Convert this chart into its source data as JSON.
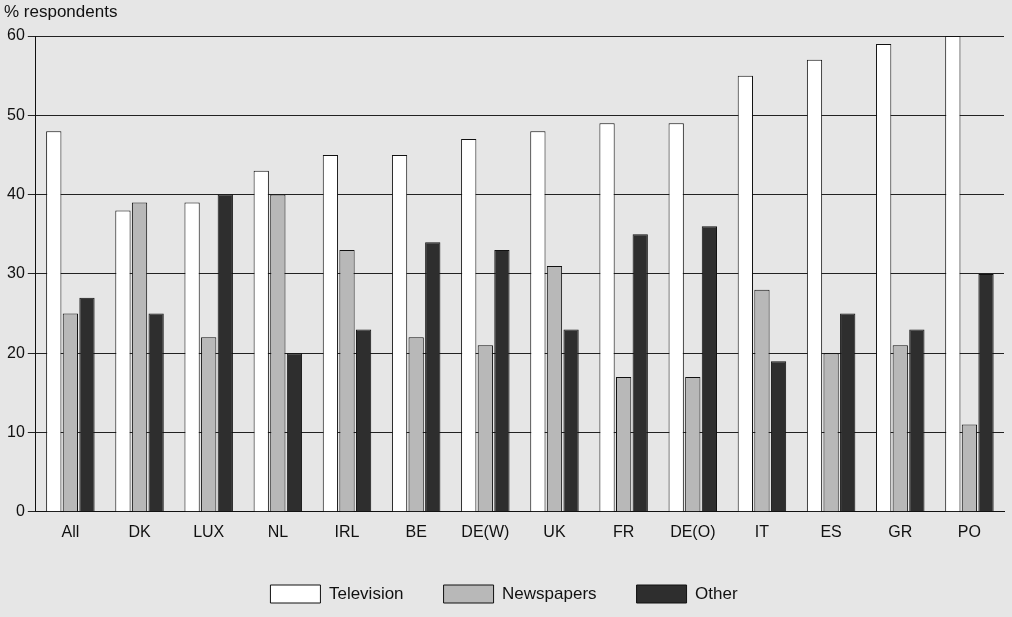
{
  "chart_data": {
    "type": "bar",
    "ylabel": "% respondents",
    "categories": [
      "All",
      "DK",
      "LUX",
      "NL",
      "IRL",
      "BE",
      "DE(W)",
      "UK",
      "FR",
      "DE(O)",
      "IT",
      "ES",
      "GR",
      "PO"
    ],
    "series": [
      {
        "name": "Television",
        "color": "#ffffff",
        "values": [
          48,
          38,
          39,
          43,
          45,
          45,
          47,
          48,
          49,
          49,
          55,
          57,
          59,
          60
        ]
      },
      {
        "name": "Newspapers",
        "color": "#b8b8b8",
        "values": [
          25,
          39,
          22,
          40,
          33,
          22,
          21,
          31,
          17,
          17,
          28,
          20,
          21,
          11
        ]
      },
      {
        "name": "Other",
        "color": "#2e2e2e",
        "values": [
          27,
          25,
          40,
          20,
          23,
          34,
          33,
          23,
          35,
          36,
          19,
          25,
          23,
          30
        ]
      }
    ],
    "ylim": [
      0,
      60
    ],
    "yticks": [
      0,
      10,
      20,
      30,
      40,
      50,
      60
    ],
    "grid": "y",
    "legend": "bottom"
  }
}
